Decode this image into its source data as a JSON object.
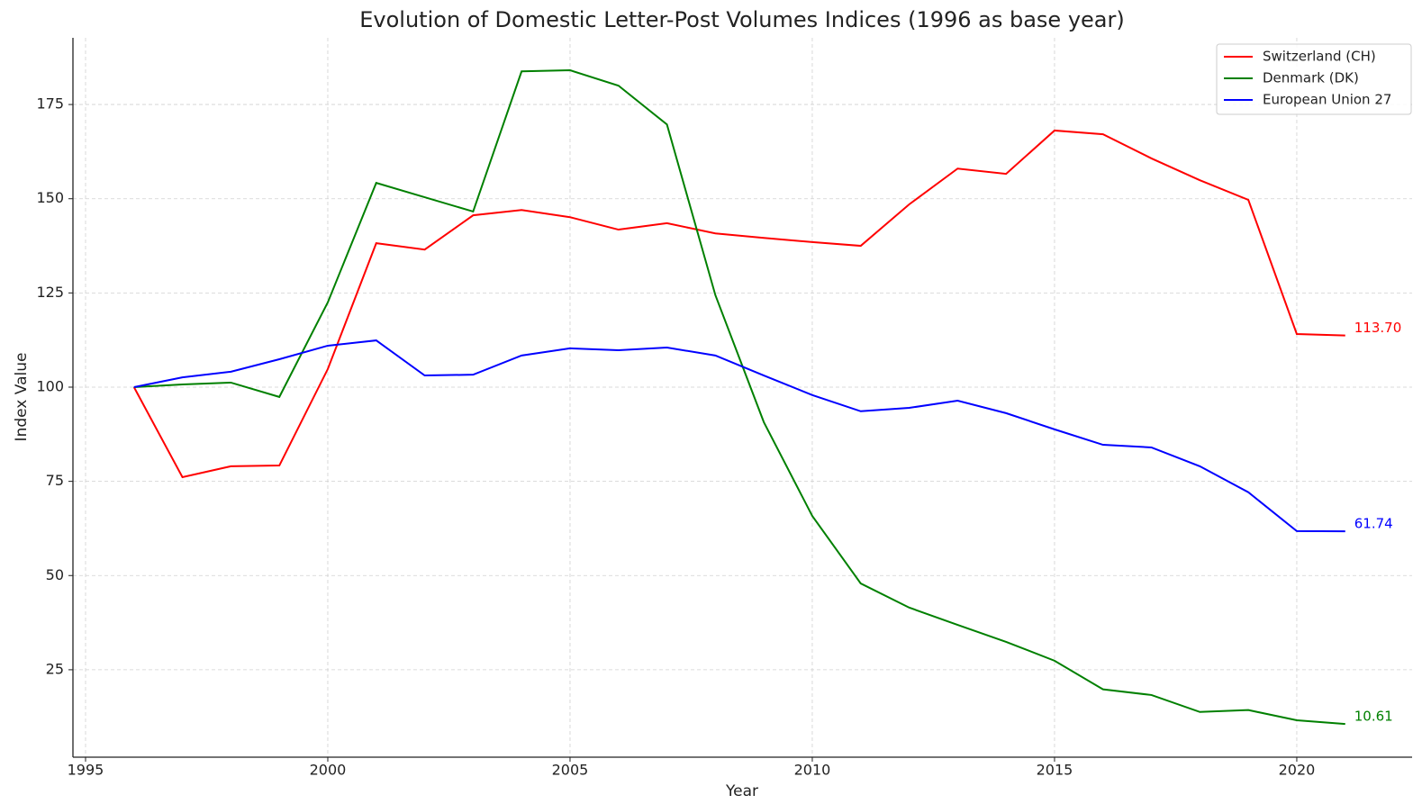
{
  "chart_data": {
    "type": "line",
    "title": "Evolution of Domestic Letter-Post Volumes Indices (1996 as base year)",
    "x_label": "Year",
    "y_label": "Index Value",
    "x": [
      1996,
      1997,
      1998,
      1999,
      2000,
      2001,
      2002,
      2003,
      2004,
      2005,
      2006,
      2007,
      2008,
      2009,
      2010,
      2011,
      2012,
      2013,
      2014,
      2015,
      2016,
      2017,
      2018,
      2019,
      2020,
      2021
    ],
    "series": [
      {
        "name": "Switzerland (CH)",
        "color": "#ff0000",
        "values": [
          100,
          76.1,
          79.0,
          79.2,
          104.8,
          138.2,
          136.5,
          145.6,
          147.0,
          145.1,
          141.8,
          143.5,
          140.8,
          139.6,
          138.5,
          137.5,
          148.5,
          158.0,
          156.6,
          168.1,
          167.1,
          160.7,
          154.9,
          149.7,
          114.1,
          113.7
        ],
        "value_labels": [
          null,
          null,
          null,
          null,
          null,
          null,
          null,
          null,
          null,
          null,
          null,
          null,
          null,
          null,
          null,
          null,
          null,
          null,
          null,
          null,
          null,
          null,
          null,
          null,
          null,
          "113.70"
        ]
      },
      {
        "name": "Denmark (DK)",
        "color": "#008000",
        "values": [
          100,
          100.7,
          101.2,
          97.4,
          122.5,
          154.2,
          150.4,
          146.6,
          183.8,
          184.1,
          180.0,
          169.7,
          124.4,
          90.7,
          65.8,
          47.9,
          41.5,
          36.9,
          32.4,
          27.4,
          19.8,
          18.3,
          13.8,
          14.3,
          11.6,
          10.61
        ],
        "value_labels": [
          null,
          null,
          null,
          null,
          null,
          null,
          null,
          null,
          null,
          null,
          null,
          null,
          null,
          null,
          null,
          null,
          null,
          null,
          null,
          null,
          null,
          null,
          null,
          null,
          null,
          "10.61"
        ]
      },
      {
        "name": "European Union 27",
        "color": "#0000ff",
        "values": [
          100,
          102.6,
          104.1,
          107.4,
          111.0,
          112.4,
          103.1,
          103.3,
          108.4,
          110.3,
          109.8,
          110.5,
          108.4,
          103.1,
          97.9,
          93.6,
          94.5,
          96.4,
          93.1,
          88.8,
          84.7,
          84.0,
          79.0,
          72.1,
          61.8,
          61.74
        ],
        "value_labels": [
          null,
          null,
          null,
          null,
          null,
          null,
          null,
          null,
          null,
          null,
          null,
          null,
          null,
          null,
          null,
          null,
          null,
          null,
          null,
          null,
          null,
          null,
          null,
          null,
          null,
          "61.74"
        ]
      }
    ],
    "xlim": [
      1994.74,
      2022.38
    ],
    "xticks": [
      1995,
      2000,
      2005,
      2010,
      2015,
      2020
    ],
    "ylim": [
      1.8,
      192.7
    ],
    "yticks": [
      25,
      50,
      75,
      100,
      125,
      150,
      175
    ],
    "grid": true,
    "legend": "upper right"
  }
}
